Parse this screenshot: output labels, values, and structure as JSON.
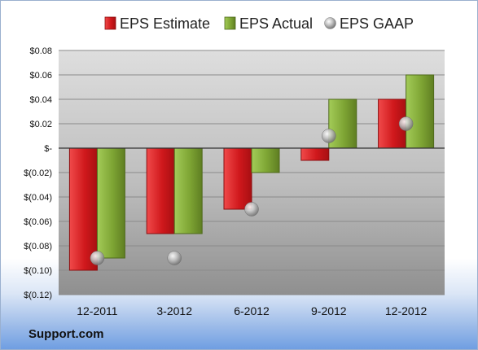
{
  "chart_data": {
    "type": "bar",
    "categories": [
      "12-2011",
      "3-2012",
      "6-2012",
      "9-2012",
      "12-2012"
    ],
    "series": [
      {
        "name": "EPS Estimate",
        "kind": "bar",
        "color": "#c8161b",
        "values": [
          -0.1,
          -0.07,
          -0.05,
          -0.01,
          0.04
        ]
      },
      {
        "name": "EPS Actual",
        "kind": "bar",
        "color": "#7ea534",
        "values": [
          -0.09,
          -0.07,
          -0.02,
          0.04,
          0.06
        ]
      },
      {
        "name": "EPS GAAP",
        "kind": "marker",
        "color": "#a8a8a8",
        "values": [
          -0.09,
          -0.09,
          -0.05,
          0.01,
          0.02
        ]
      }
    ],
    "ylim": [
      -0.12,
      0.08
    ],
    "yticks": [
      0.08,
      0.06,
      0.04,
      0.02,
      0,
      -0.02,
      -0.04,
      -0.06,
      -0.08,
      -0.1,
      -0.12
    ],
    "ytick_labels": [
      "$0.08",
      "$0.06",
      "$0.04",
      "$0.02",
      "$-",
      "$(0.02)",
      "$(0.04)",
      "$(0.06)",
      "$(0.08)",
      "$(0.10)",
      "$(0.12)"
    ],
    "grid": true,
    "legend": "top",
    "title": "",
    "xlabel": "",
    "ylabel": ""
  },
  "source": "Support.com"
}
